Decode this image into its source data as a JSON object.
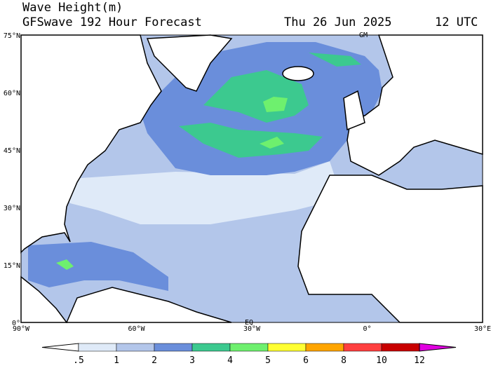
{
  "header": {
    "title": "Wave Height(m)",
    "subtitle": "GFSwave 192 Hour Forecast",
    "date": "Thu 26 Jun 2025",
    "time": "12 UTC"
  },
  "axes": {
    "lat_labels": [
      "75°N",
      "60°N",
      "45°N",
      "30°N",
      "15°N",
      "0°"
    ],
    "lon_labels": [
      "90°W",
      "60°W",
      "30°W",
      "0°",
      "30°E"
    ]
  },
  "map_labels": {
    "top": "GM",
    "bottom": "EQ"
  },
  "legend": {
    "labels": [
      ".5",
      "1",
      "2",
      "3",
      "4",
      "5",
      "6",
      "8",
      "10",
      "12"
    ],
    "colors": [
      "#ffffff",
      "#dfeaf8",
      "#b3c6ea",
      "#6a8edb",
      "#3cc98f",
      "#6ef06e",
      "#ffff33",
      "#ffa500",
      "#ff4040",
      "#c80000",
      "#e000e0"
    ]
  }
}
